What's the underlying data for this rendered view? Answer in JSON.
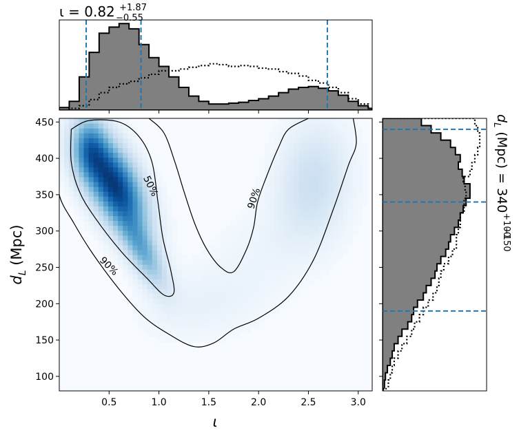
{
  "colors": {
    "hist_fill": "#808080",
    "quantile_line": "#1f77b4",
    "density_low": "#f7fbff",
    "density_high": "#08306b"
  },
  "chart_data": [
    {
      "panel": "top-marginal",
      "type": "area",
      "title_main": "ι = 0.82",
      "title_sup": "+1.87",
      "title_sub": "−0.55",
      "x": [
        0.0,
        0.1,
        0.2,
        0.3,
        0.4,
        0.5,
        0.6,
        0.7,
        0.8,
        0.9,
        1.0,
        1.1,
        1.2,
        1.3,
        1.4,
        1.5,
        1.6,
        1.7,
        1.8,
        1.9,
        2.0,
        2.1,
        2.2,
        2.3,
        2.4,
        2.5,
        2.6,
        2.7,
        2.8,
        2.9,
        3.0,
        3.1
      ],
      "series": [
        {
          "values": [
            0.03,
            0.1,
            0.38,
            0.66,
            0.88,
            0.95,
            0.99,
            0.93,
            0.75,
            0.6,
            0.5,
            0.38,
            0.26,
            0.16,
            0.1,
            0.07,
            0.07,
            0.08,
            0.09,
            0.11,
            0.13,
            0.16,
            0.2,
            0.24,
            0.26,
            0.27,
            0.25,
            0.22,
            0.17,
            0.1,
            0.05,
            0.02
          ]
        },
        {
          "values": [
            0.0,
            0.02,
            0.05,
            0.12,
            0.2,
            0.26,
            0.3,
            0.33,
            0.37,
            0.41,
            0.45,
            0.45,
            0.47,
            0.49,
            0.51,
            0.53,
            0.52,
            0.5,
            0.51,
            0.5,
            0.48,
            0.47,
            0.44,
            0.42,
            0.39,
            0.34,
            0.31,
            0.26,
            0.2,
            0.13,
            0.07,
            0.02
          ]
        }
      ],
      "quantiles": [
        0.27,
        0.82,
        2.69
      ],
      "xlim": [
        0.0,
        3.14
      ]
    },
    {
      "panel": "joint",
      "type": "heatmap",
      "xlabel_italic": "ι",
      "ylabel_main": "d",
      "ylabel_sub": "L",
      "ylabel_rest": " (Mpc)",
      "xlim": [
        0.0,
        3.14
      ],
      "ylim": [
        80,
        455
      ],
      "xticks": [
        0.5,
        1.0,
        1.5,
        2.0,
        2.5,
        3.0
      ],
      "xtick_labels": [
        "0.5",
        "1.0",
        "1.5",
        "2.0",
        "2.5",
        "3.0"
      ],
      "yticks": [
        100,
        150,
        200,
        250,
        300,
        350,
        400,
        450
      ],
      "ytick_labels": [
        "100",
        "150",
        "200",
        "250",
        "300",
        "350",
        "400",
        "450"
      ],
      "contour_labels": [
        "50%",
        "90%",
        "90%"
      ],
      "contours": [
        {
          "level": "50%",
          "points": [
            [
              0.12,
              440
            ],
            [
              0.3,
              452
            ],
            [
              0.6,
              450
            ],
            [
              0.8,
              430
            ],
            [
              0.93,
              395
            ],
            [
              0.99,
              340
            ],
            [
              1.04,
              290
            ],
            [
              1.12,
              245
            ],
            [
              1.15,
              215
            ],
            [
              1.05,
              212
            ],
            [
              0.88,
              235
            ],
            [
              0.62,
              272
            ],
            [
              0.35,
              320
            ],
            [
              0.2,
              355
            ],
            [
              0.12,
              395
            ],
            [
              0.12,
              440
            ]
          ]
        },
        {
          "level": "90%",
          "points": [
            [
              0.0,
              400
            ],
            [
              0.0,
              350
            ],
            [
              0.15,
              310
            ],
            [
              0.33,
              270
            ],
            [
              0.6,
              220
            ],
            [
              0.85,
              182
            ],
            [
              1.1,
              158
            ],
            [
              1.35,
              141
            ],
            [
              1.55,
              146
            ],
            [
              1.75,
              165
            ],
            [
              2.0,
              180
            ],
            [
              2.3,
              210
            ],
            [
              2.55,
              260
            ],
            [
              2.75,
              330
            ],
            [
              2.9,
              390
            ],
            [
              2.98,
              420
            ],
            [
              2.95,
              455
            ]
          ]
        },
        {
          "level": "90%",
          "points": [
            [
              2.5,
              455
            ],
            [
              2.3,
              440
            ],
            [
              2.2,
              415
            ],
            [
              2.08,
              375
            ],
            [
              1.99,
              340
            ],
            [
              1.95,
              305
            ],
            [
              1.88,
              275
            ],
            [
              1.75,
              244
            ],
            [
              1.62,
              250
            ],
            [
              1.48,
              275
            ],
            [
              1.36,
              310
            ],
            [
              1.25,
              355
            ],
            [
              1.16,
              395
            ],
            [
              1.05,
              435
            ],
            [
              0.9,
              455
            ]
          ]
        }
      ]
    },
    {
      "panel": "right-marginal",
      "type": "area",
      "title_main": "d",
      "title_sub_italic": "L",
      "title_rest": " (Mpc) = 340",
      "title_sup": "+100",
      "title_sub": "−150",
      "y": [
        90,
        100,
        110,
        120,
        130,
        140,
        150,
        160,
        170,
        180,
        190,
        200,
        210,
        220,
        230,
        240,
        250,
        260,
        270,
        280,
        290,
        300,
        310,
        320,
        330,
        340,
        350,
        360,
        370,
        380,
        390,
        400,
        410,
        420,
        430,
        440,
        450
      ],
      "series": [
        {
          "values": [
            0.02,
            0.03,
            0.05,
            0.08,
            0.1,
            0.12,
            0.16,
            0.2,
            0.26,
            0.3,
            0.32,
            0.36,
            0.42,
            0.45,
            0.5,
            0.54,
            0.56,
            0.6,
            0.65,
            0.68,
            0.7,
            0.74,
            0.78,
            0.8,
            0.83,
            0.86,
            0.9,
            0.9,
            0.84,
            0.82,
            0.78,
            0.8,
            0.75,
            0.7,
            0.6,
            0.5,
            0.4
          ]
        },
        {
          "values": [
            0.06,
            0.08,
            0.1,
            0.12,
            0.16,
            0.2,
            0.25,
            0.3,
            0.33,
            0.38,
            0.42,
            0.47,
            0.52,
            0.56,
            0.58,
            0.6,
            0.63,
            0.68,
            0.72,
            0.76,
            0.76,
            0.78,
            0.8,
            0.8,
            0.84,
            0.84,
            0.86,
            0.85,
            0.83,
            0.9,
            0.92,
            0.95,
            0.98,
            1.0,
            1.0,
            0.98,
            0.95
          ]
        }
      ],
      "quantiles": [
        190,
        340,
        440
      ],
      "ylim": [
        80,
        455
      ]
    }
  ]
}
